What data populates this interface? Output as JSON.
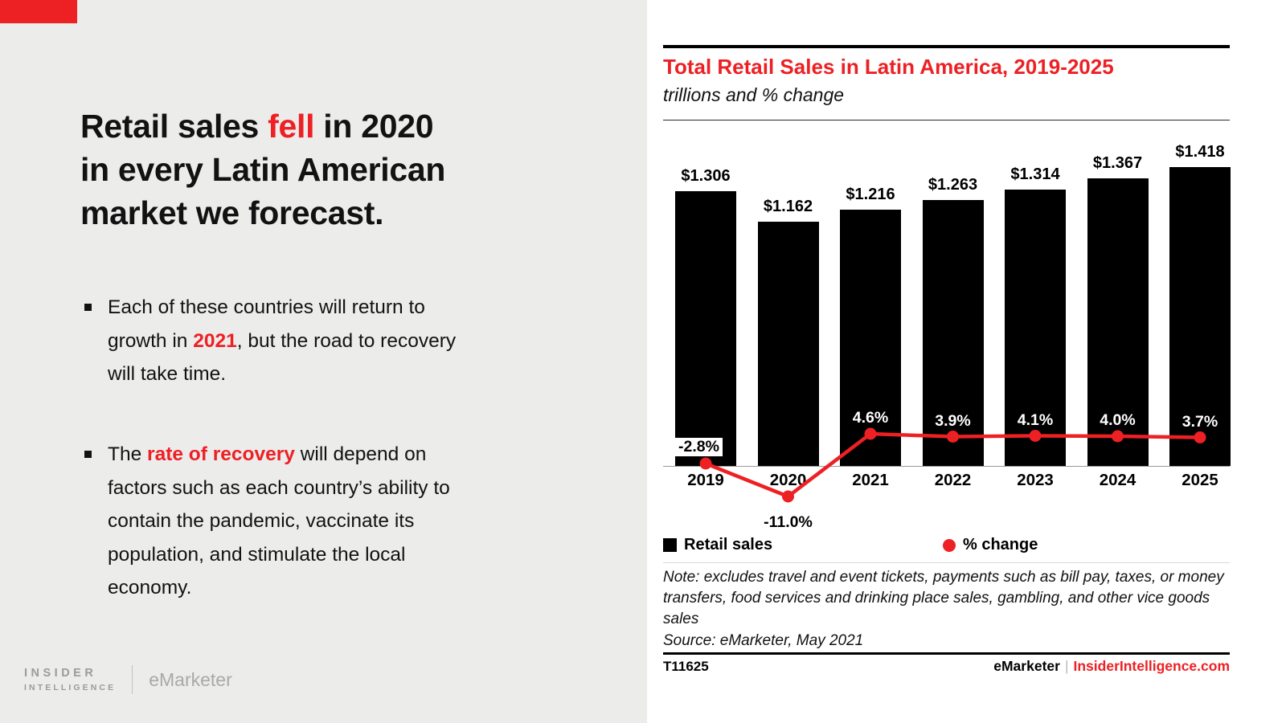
{
  "colors": {
    "accent_red": "#ED2024",
    "bar_black": "#000000",
    "left_bg": "#ECECEB"
  },
  "left_panel": {
    "headline": {
      "line1_pre": "Retail sales ",
      "line1_red": "fell",
      "line1_post": " in 2020",
      "line2": "in every Latin American",
      "line3": "market we forecast."
    },
    "bullets": [
      {
        "lines": [
          {
            "t1": "Each of these countries will return to",
            "red": "",
            "t2": ""
          },
          {
            "t1": "growth in ",
            "red": "2021",
            "t2": ", but the road to recovery"
          },
          {
            "t1": "will take time.",
            "red": "",
            "t2": ""
          }
        ]
      },
      {
        "lines": [
          {
            "t1": "The ",
            "red": "rate of recovery",
            "t2": " will depend on"
          },
          {
            "t1": "factors such as each country’s ability to",
            "red": "",
            "t2": ""
          },
          {
            "t1": "contain the pandemic, vaccinate its",
            "red": "",
            "t2": ""
          },
          {
            "t1": "population, and stimulate the local",
            "red": "",
            "t2": ""
          },
          {
            "t1": "economy.",
            "red": "",
            "t2": ""
          }
        ]
      }
    ],
    "logos": {
      "insider_line1": "INSIDER",
      "insider_line2": "INTELLIGENCE",
      "emarketer": "eMarketer"
    }
  },
  "chart": {
    "title": "Total Retail Sales in Latin America, 2019-2025",
    "subtitle": "trillions and % change",
    "legend_retail": "Retail sales",
    "legend_change": "% change",
    "note": "Note: excludes travel and event tickets, payments such as bill pay, taxes, or money transfers, food services and drinking place sales, gambling, and other vice goods sales",
    "source": "Source: eMarketer, May 2021",
    "footer": {
      "id": "T11625",
      "brand": "eMarketer",
      "separator": "|",
      "site": "InsiderIntelligence.com"
    }
  },
  "chart_data": {
    "type": "bar",
    "categories": [
      "2019",
      "2020",
      "2021",
      "2022",
      "2023",
      "2024",
      "2025"
    ],
    "series": [
      {
        "name": "Retail sales",
        "type": "bar",
        "unit": "trillions USD",
        "values": [
          1.306,
          1.162,
          1.216,
          1.263,
          1.314,
          1.367,
          1.418
        ],
        "labels": [
          "$1.306",
          "$1.162",
          "$1.216",
          "$1.263",
          "$1.314",
          "$1.367",
          "$1.418"
        ],
        "color": "#000000"
      },
      {
        "name": "% change",
        "type": "line",
        "unit": "%",
        "values": [
          -2.8,
          -11.0,
          4.6,
          3.9,
          4.1,
          4.0,
          3.7
        ],
        "labels": [
          "-2.8%",
          "-11.0%",
          "4.6%",
          "3.9%",
          "4.1%",
          "4.0%",
          "3.7%"
        ],
        "color": "#ED2024"
      }
    ],
    "ylim": [
      0,
      1.55
    ],
    "grid": false,
    "legend_position": "bottom"
  }
}
